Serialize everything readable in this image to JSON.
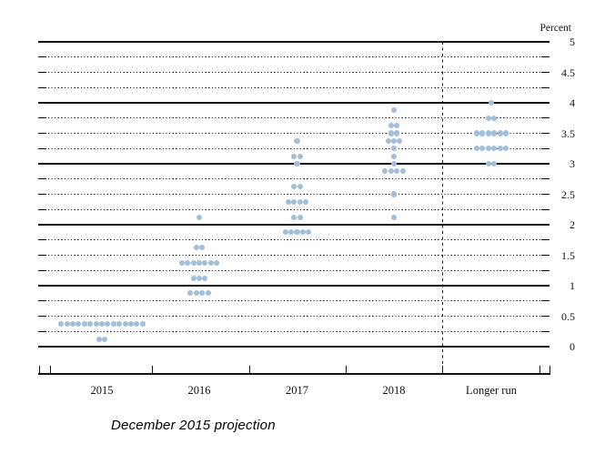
{
  "caption": "December 2015 projection",
  "chart_data": {
    "type": "scatter",
    "title": "December 2015 projection",
    "ylabel": "Percent",
    "ylim": [
      0,
      5
    ],
    "gridline_step": 0.25,
    "solid_gridlines_at": "integers",
    "y_tick_labels": [
      "5",
      "4.5",
      "4",
      "3.5",
      "3",
      "2.5",
      "2",
      "1.5",
      "1",
      "0.5",
      "0"
    ],
    "categories": [
      "2015",
      "2016",
      "2017",
      "2018",
      "Longer run"
    ],
    "separator_before_category": "Longer run",
    "dot_color": "#a2bed8",
    "series": [
      {
        "category": "2015",
        "dots": [
          {
            "rate": 0.375,
            "count": 15
          },
          {
            "rate": 0.125,
            "count": 2
          }
        ]
      },
      {
        "category": "2016",
        "dots": [
          {
            "rate": 2.125,
            "count": 1
          },
          {
            "rate": 1.625,
            "count": 2
          },
          {
            "rate": 1.375,
            "count": 7
          },
          {
            "rate": 1.125,
            "count": 3
          },
          {
            "rate": 0.875,
            "count": 4
          }
        ]
      },
      {
        "category": "2017",
        "dots": [
          {
            "rate": 3.375,
            "count": 1
          },
          {
            "rate": 3.125,
            "count": 2
          },
          {
            "rate": 3.0,
            "count": 1
          },
          {
            "rate": 2.625,
            "count": 2
          },
          {
            "rate": 2.375,
            "count": 4
          },
          {
            "rate": 2.125,
            "count": 2
          },
          {
            "rate": 1.875,
            "count": 5
          }
        ]
      },
      {
        "category": "2018",
        "dots": [
          {
            "rate": 3.875,
            "count": 1
          },
          {
            "rate": 3.625,
            "count": 2
          },
          {
            "rate": 3.5,
            "count": 2
          },
          {
            "rate": 3.375,
            "count": 3
          },
          {
            "rate": 3.25,
            "count": 1
          },
          {
            "rate": 3.125,
            "count": 1
          },
          {
            "rate": 3.0,
            "count": 1
          },
          {
            "rate": 2.875,
            "count": 4
          },
          {
            "rate": 2.5,
            "count": 1
          },
          {
            "rate": 2.125,
            "count": 1
          }
        ]
      },
      {
        "category": "Longer run",
        "dots": [
          {
            "rate": 4.0,
            "count": 1
          },
          {
            "rate": 3.75,
            "count": 2
          },
          {
            "rate": 3.5,
            "count": 6
          },
          {
            "rate": 3.25,
            "count": 6
          },
          {
            "rate": 3.0,
            "count": 2
          }
        ]
      }
    ]
  }
}
